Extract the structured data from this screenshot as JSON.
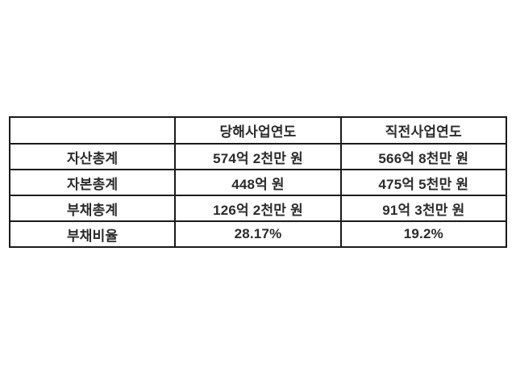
{
  "chart_data": {
    "type": "table",
    "title": "",
    "columns": [
      "",
      "당해사업연도",
      "직전사업연도"
    ],
    "rows": [
      [
        "자산총계",
        "574억 2천만 원",
        "566억 8천만 원"
      ],
      [
        "자본총계",
        "448억 원",
        "475억 5천만 원"
      ],
      [
        "부채총계",
        "126억 2천만 원",
        "91억 3천만 원"
      ],
      [
        "부채비율",
        "28.17%",
        "19.2%"
      ]
    ]
  },
  "colors": {
    "background": "#ffffff",
    "border": "#1b1b1b",
    "text": "#2b2b2b"
  }
}
